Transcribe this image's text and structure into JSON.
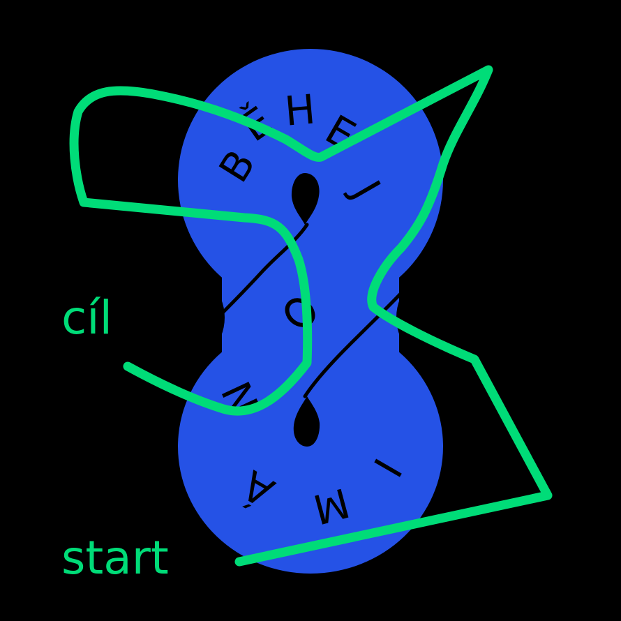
{
  "colors": {
    "background": "#000000",
    "figure_blue": "#2552e6",
    "route_green": "#00dc78",
    "line_black": "#000000"
  },
  "labels": {
    "finish": "cíl",
    "start": "start"
  },
  "ring_top": [
    "B",
    "Ě",
    "H",
    "E",
    "J"
  ],
  "ring_bottom": [
    "N",
    "Á",
    "M",
    "I"
  ]
}
